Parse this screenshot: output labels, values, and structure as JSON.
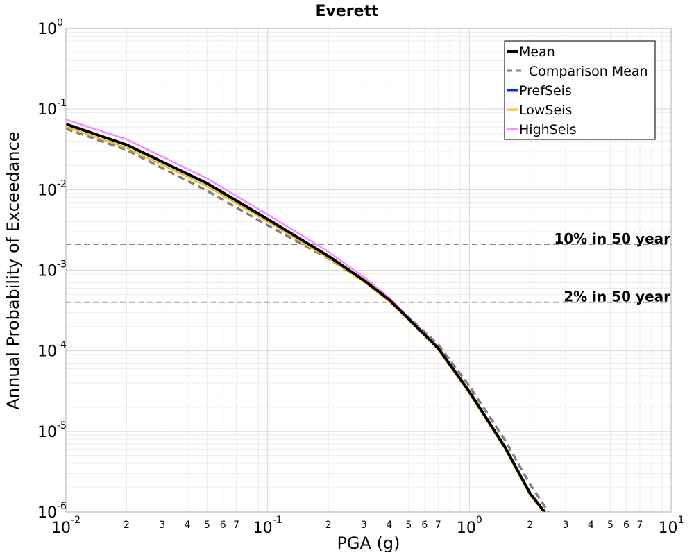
{
  "chart_data": {
    "type": "line",
    "title": "Everett",
    "xlabel": "PGA (g)",
    "ylabel": "Annual Probability of Exceedance",
    "x_scale": "log",
    "y_scale": "log",
    "xlim": [
      0.01,
      10
    ],
    "ylim": [
      1e-06,
      1
    ],
    "grid": true,
    "legend_position": "top-right",
    "x_major_ticks": [
      {
        "value": 0.01,
        "base": "10",
        "exp": "-2"
      },
      {
        "value": 0.1,
        "base": "10",
        "exp": "-1"
      },
      {
        "value": 1,
        "base": "10",
        "exp": "0"
      },
      {
        "value": 10,
        "base": "10",
        "exp": "1"
      }
    ],
    "x_minor_tick_labels": [
      "2",
      "3",
      "4",
      "5",
      "6",
      "7"
    ],
    "y_major_ticks": [
      {
        "value": 1e-06,
        "base": "10",
        "exp": "-6"
      },
      {
        "value": 1e-05,
        "base": "10",
        "exp": "-5"
      },
      {
        "value": 0.0001,
        "base": "10",
        "exp": "-4"
      },
      {
        "value": 0.001,
        "base": "10",
        "exp": "-3"
      },
      {
        "value": 0.01,
        "base": "10",
        "exp": "-2"
      },
      {
        "value": 0.1,
        "base": "10",
        "exp": "-1"
      },
      {
        "value": 1,
        "base": "10",
        "exp": "0"
      }
    ],
    "reference_lines": [
      {
        "label": "10% in 50 year",
        "y": 0.0021
      },
      {
        "label": "2% in 50 year",
        "y": 0.0004
      }
    ],
    "series": [
      {
        "name": "Mean",
        "color": "#000000",
        "dash": "solid",
        "x": [
          0.01,
          0.02,
          0.05,
          0.1,
          0.2,
          0.3,
          0.4,
          0.5,
          0.7,
          1.0,
          1.5,
          2.0,
          2.4
        ],
        "y": [
          0.065,
          0.036,
          0.012,
          0.0043,
          0.0015,
          0.00075,
          0.00043,
          0.00025,
          0.000108,
          3.1e-05,
          6.4e-06,
          1.7e-06,
          9.5e-07
        ]
      },
      {
        "name": "Comparison Mean",
        "color": "#808080",
        "dash": "dashed",
        "x": [
          0.01,
          0.02,
          0.05,
          0.1,
          0.2,
          0.3,
          0.4,
          0.5,
          0.7,
          1.0,
          1.5,
          2.0,
          2.5
        ],
        "y": [
          0.057,
          0.031,
          0.0097,
          0.0036,
          0.0014,
          0.00073,
          0.00043,
          0.00026,
          0.00012,
          3.65e-05,
          7.8e-06,
          2.2e-06,
          9.5e-07
        ]
      },
      {
        "name": "PrefSeis",
        "color": "#0033cc",
        "dash": "solid",
        "x": [
          0.01,
          0.02,
          0.05,
          0.1,
          0.2,
          0.3,
          0.4,
          0.5,
          0.7,
          1.0,
          1.5,
          2.0,
          2.4
        ],
        "y": [
          0.064,
          0.0355,
          0.0118,
          0.0042,
          0.00148,
          0.00074,
          0.000425,
          0.000248,
          0.000107,
          3.05e-05,
          6.3e-06,
          1.7e-06,
          9.5e-07
        ]
      },
      {
        "name": "LowSeis",
        "color": "#f0c020",
        "dash": "solid",
        "x": [
          0.01,
          0.02,
          0.05,
          0.1,
          0.2,
          0.3,
          0.4,
          0.5,
          0.7,
          1.0,
          1.5,
          2.0,
          2.4
        ],
        "y": [
          0.06,
          0.033,
          0.011,
          0.004,
          0.00142,
          0.00072,
          0.00041,
          0.00024,
          0.000103,
          2.95e-05,
          6.1e-06,
          1.6e-06,
          9.2e-07
        ]
      },
      {
        "name": "HighSeis",
        "color": "#ff88ff",
        "dash": "solid",
        "x": [
          0.01,
          0.02,
          0.05,
          0.1,
          0.2,
          0.3,
          0.4,
          0.5,
          0.7,
          1.0,
          1.5,
          2.0,
          2.4
        ],
        "y": [
          0.074,
          0.042,
          0.0138,
          0.0049,
          0.0017,
          0.00082,
          0.00046,
          0.00026,
          0.000112,
          3.2e-05,
          6.6e-06,
          1.7e-06,
          9.5e-07
        ]
      }
    ]
  }
}
